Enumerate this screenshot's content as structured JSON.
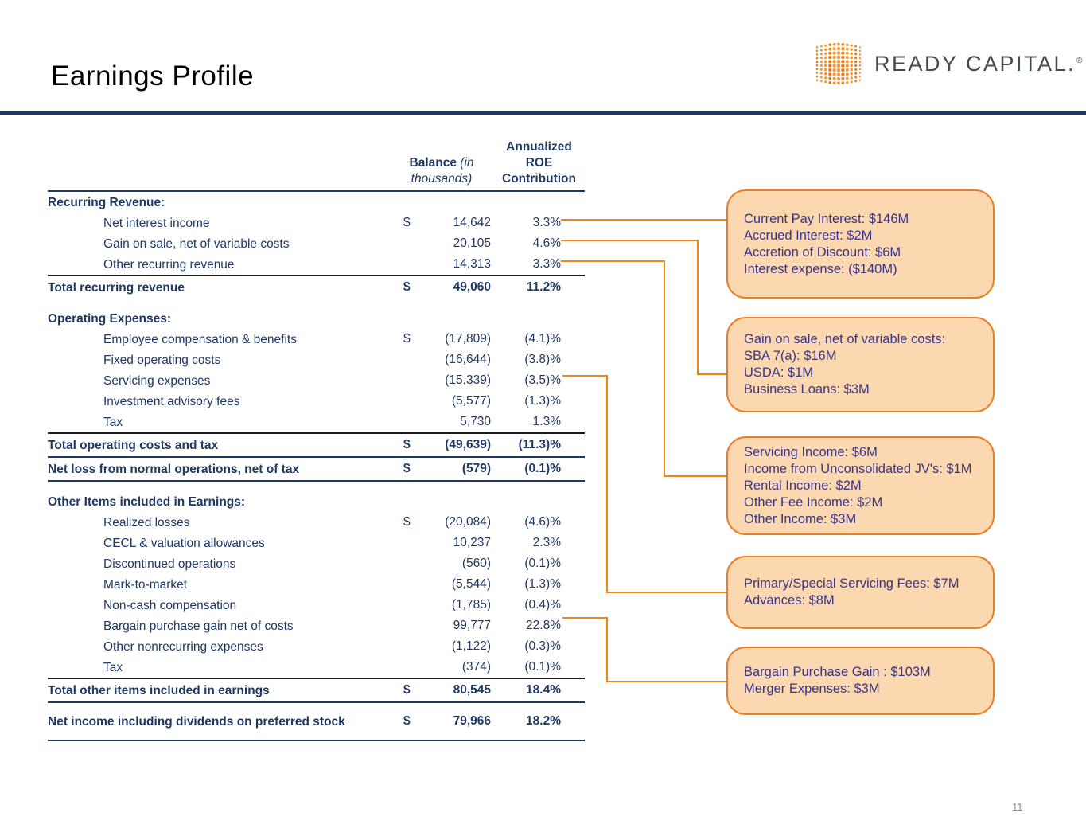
{
  "header": {
    "title": "Earnings Profile",
    "logo_text": "READY CAPITAL.",
    "logo_reg": "®"
  },
  "table": {
    "header": {
      "balance_label": "Balance",
      "balance_note": "(in thousands)",
      "roe_label": "Annualized ROE Contribution"
    },
    "rows": [
      {
        "type": "section",
        "label": "Recurring Revenue:"
      },
      {
        "type": "item",
        "label": "Net interest income",
        "dollar": "$",
        "balance": "14,642",
        "roe": "3.3%"
      },
      {
        "type": "item",
        "label": "Gain on sale, net of variable costs",
        "dollar": "",
        "balance": "20,105",
        "roe": "4.6%"
      },
      {
        "type": "item",
        "label": "Other recurring revenue",
        "dollar": "",
        "balance": "14,313",
        "roe": "3.3%",
        "rule_bottom": "black"
      },
      {
        "type": "total",
        "label": "Total recurring revenue",
        "dollar": "$",
        "balance": "49,060",
        "roe": "11.2%"
      },
      {
        "type": "section",
        "label": "Operating Expenses:",
        "spacer_before": true
      },
      {
        "type": "item",
        "label": "Employee compensation & benefits",
        "dollar": "$",
        "balance": "(17,809)",
        "roe": "(4.1)%"
      },
      {
        "type": "item",
        "label": "Fixed operating costs",
        "dollar": "",
        "balance": "(16,644)",
        "roe": "(3.8)%"
      },
      {
        "type": "item",
        "label": "Servicing expenses",
        "dollar": "",
        "balance": "(15,339)",
        "roe": "(3.5)%"
      },
      {
        "type": "item",
        "label": "Investment advisory fees",
        "dollar": "",
        "balance": "(5,577)",
        "roe": "(1.3)%"
      },
      {
        "type": "item",
        "label": "Tax",
        "dollar": "",
        "balance": "5,730",
        "roe": "1.3%",
        "rule_bottom": "black"
      },
      {
        "type": "total",
        "label": "Total operating costs and tax",
        "dollar": "$",
        "balance": "(49,639)",
        "roe": "(11.3)%",
        "rule_bottom": "navy"
      },
      {
        "type": "total",
        "label": "Net loss from normal operations, net of tax",
        "dollar": "$",
        "balance": "(579)",
        "roe": "(0.1)%",
        "rule_bottom": "navy"
      },
      {
        "type": "section",
        "label": "Other Items included in Earnings:",
        "spacer_before": true
      },
      {
        "type": "item",
        "label": "Realized losses",
        "dollar": "$",
        "balance": "(20,084)",
        "roe": "(4.6)%"
      },
      {
        "type": "item",
        "label": "CECL & valuation allowances",
        "dollar": "",
        "balance": "10,237",
        "roe": "2.3%"
      },
      {
        "type": "item",
        "label": "Discontinued operations",
        "dollar": "",
        "balance": "(560)",
        "roe": "(0.1)%"
      },
      {
        "type": "item",
        "label": "Mark-to-market",
        "dollar": "",
        "balance": "(5,544)",
        "roe": "(1.3)%"
      },
      {
        "type": "item",
        "label": "Non-cash compensation",
        "dollar": "",
        "balance": "(1,785)",
        "roe": "(0.4)%"
      },
      {
        "type": "item",
        "label": "Bargain purchase gain net of costs",
        "dollar": "",
        "balance": "99,777",
        "roe": "22.8%"
      },
      {
        "type": "item",
        "label": "Other nonrecurring expenses",
        "dollar": "",
        "balance": "(1,122)",
        "roe": "(0.3)%"
      },
      {
        "type": "item",
        "label": "Tax",
        "dollar": "",
        "balance": "(374)",
        "roe": "(0.1)%",
        "rule_bottom": "black"
      },
      {
        "type": "total",
        "label": "Total other items included in earnings",
        "dollar": "$",
        "balance": "80,545",
        "roe": "18.4%",
        "rule_bottom": "navy"
      },
      {
        "type": "total",
        "label": "Net income including dividends on preferred stock",
        "dollar": "$",
        "balance": "79,966",
        "roe": "18.2%",
        "rule_bottom": "navy",
        "tall": true
      }
    ]
  },
  "callouts": [
    {
      "lines": [
        "Current Pay Interest: $146M",
        "Accrued Interest: $2M",
        "Accretion of Discount: $6M",
        "Interest expense: ($140M)"
      ]
    },
    {
      "lines": [
        "Gain on sale, net of variable costs:",
        "SBA 7(a): $16M",
        "USDA: $1M",
        "Business Loans: $3M"
      ]
    },
    {
      "lines": [
        "Servicing Income: $6M",
        "Income from Unconsolidated JV's: $1M",
        "Rental Income: $2M",
        "Other Fee Income: $2M",
        "Other Income: $3M"
      ]
    },
    {
      "lines": [
        "Primary/Special Servicing Fees: $7M",
        "Advances: $8M"
      ]
    },
    {
      "lines": [
        "Bargain Purchase Gain : $103M",
        "Merger Expenses: $3M"
      ]
    }
  ],
  "footer": {
    "page_number": "11"
  },
  "theme": {
    "navy": "#1F3864",
    "orange": "#F08319",
    "callout_fill": "#FBD8B0",
    "callout_border": "#ED7D22",
    "callout_text": "#3A3487",
    "logo_orange_light": "#F59A33",
    "logo_orange_dark": "#E87D15",
    "logo_gray": "#424C55",
    "page_number_gray": "#8A8A8A"
  }
}
